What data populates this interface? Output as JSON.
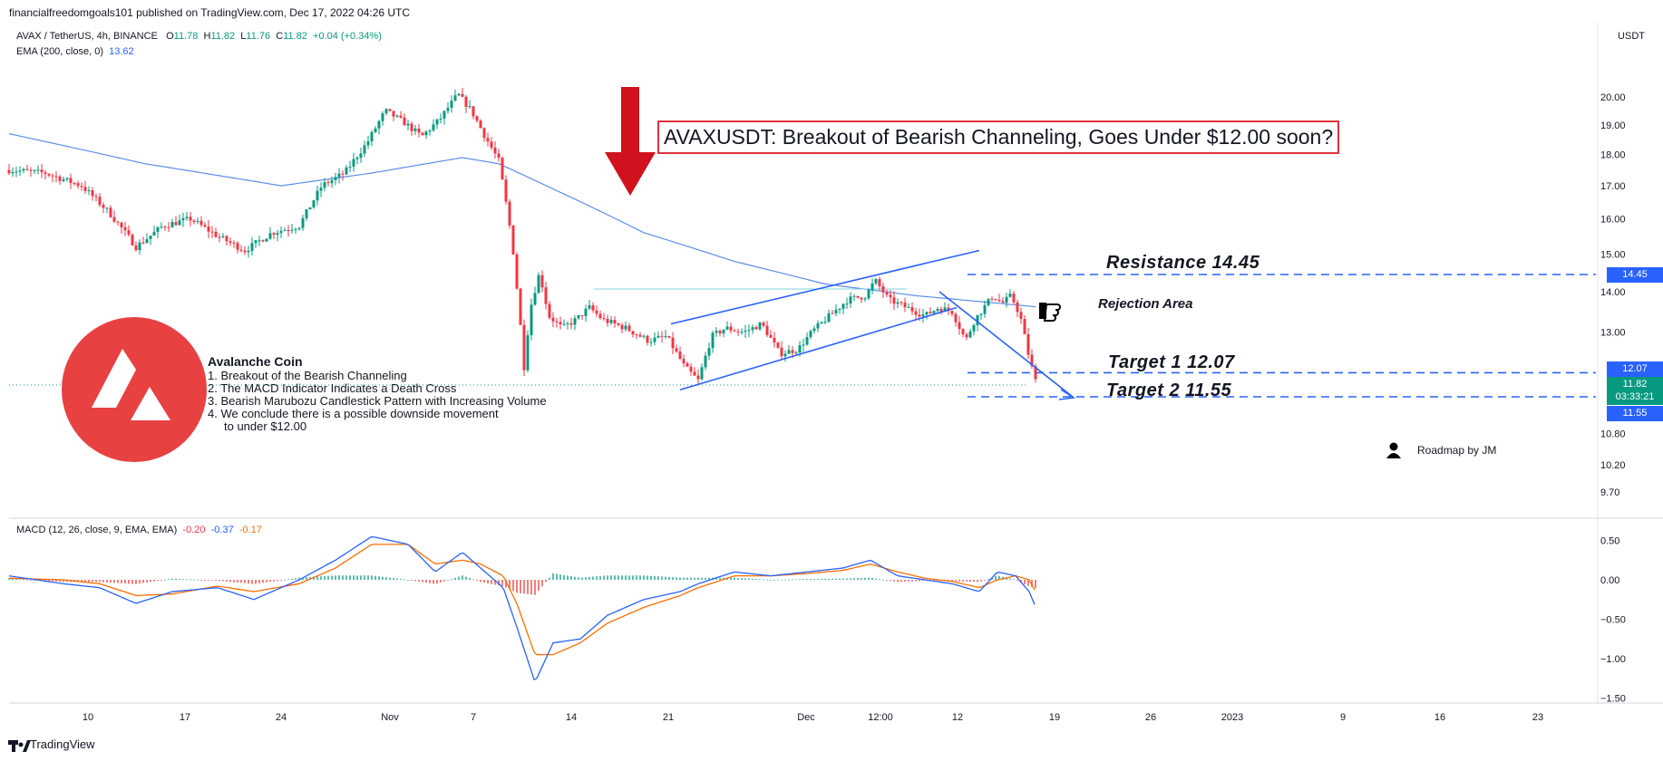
{
  "publish_line": "financialfreedomgoals101 published on TradingView.com, Dec 17, 2022 04:26 UTC",
  "legend": {
    "symbol": "AVAX / TetherUS, 4h, BINANCE",
    "open_label": "O",
    "open": "11.78",
    "high_label": "H",
    "high": "11.82",
    "low_label": "L",
    "low": "11.76",
    "close_label": "C",
    "close": "11.82",
    "change": "+0.04 (+0.34%)",
    "ema_label": "EMA (200, close, 0)",
    "ema_value": "13.62",
    "macd_label": "MACD (12, 26, close, 9, EMA, EMA)",
    "macd_hist": "-0.20",
    "macd_line": "-0.37",
    "macd_signal": "-0.17"
  },
  "headline": "AVAXUSDT: Breakout of Bearish Channeling, Goes Under $12.00 soon?",
  "annotations": {
    "resistance": "Resistance 14.45",
    "rejection": "Rejection Area",
    "target1": "Target 1  12.07",
    "target2": "Target 2  11.55",
    "roadmap": "Roadmap by JM"
  },
  "notes": {
    "title": "Avalanche Coin",
    "items": [
      "1. Breakout of the Bearish Channeling",
      "2. The MACD Indicator Indicates a Death Cross",
      "3. Bearish Marubozu Candlestick Pattern with Increasing Volume",
      "4. We conclude there is a possible downside movement",
      "    to under $12.00"
    ]
  },
  "axis": {
    "currency": "USDT",
    "price_labels": [
      "20.00",
      "19.00",
      "18.00",
      "17.00",
      "16.00",
      "15.00",
      "14.00",
      "13.00",
      "10.80",
      "10.20",
      "9.70"
    ],
    "macd_labels": [
      "0.50",
      "0.00",
      "−0.50",
      "−1.00",
      "−1.50"
    ],
    "time_labels": [
      "10",
      "17",
      "24",
      "Nov",
      "7",
      "14",
      "21",
      "Dec",
      "12:00",
      "12",
      "19",
      "26",
      "2023",
      "9",
      "16",
      "23"
    ],
    "price_tags": {
      "resistance": "14.45",
      "target1": "12.07",
      "current": "11.82",
      "countdown": "03:33:21",
      "target2": "11.55"
    }
  },
  "colors": {
    "up": "#089981",
    "down": "#f23645",
    "ema": "#5b8fe8",
    "channel": "#2962ff",
    "macd_line": "#2962ff",
    "signal_line": "#ff6d00",
    "annotation_red": "#e0313c",
    "logo_red": "#e84142"
  },
  "footer": "TradingView",
  "chart_data": {
    "type": "candlestick",
    "symbol": "AVAX / TetherUS",
    "timeframe": "4h",
    "y_axis": "log",
    "ylim": [
      9.6,
      20.8
    ],
    "price_path": [
      [
        0,
        17.5
      ],
      [
        40,
        17.4
      ],
      [
        80,
        17.0
      ],
      [
        110,
        16.2
      ],
      [
        140,
        15.2
      ],
      [
        170,
        15.8
      ],
      [
        200,
        16.0
      ],
      [
        230,
        15.5
      ],
      [
        260,
        15.1
      ],
      [
        290,
        15.6
      ],
      [
        320,
        15.8
      ],
      [
        345,
        17.0
      ],
      [
        370,
        17.4
      ],
      [
        395,
        18.4
      ],
      [
        415,
        19.5
      ],
      [
        435,
        19.1
      ],
      [
        455,
        18.6
      ],
      [
        475,
        19.2
      ],
      [
        495,
        20.1
      ],
      [
        510,
        19.5
      ],
      [
        525,
        18.6
      ],
      [
        540,
        17.8
      ],
      [
        555,
        15.3
      ],
      [
        568,
        12.2
      ],
      [
        575,
        13.6
      ],
      [
        585,
        14.5
      ],
      [
        595,
        13.4
      ],
      [
        610,
        13.1
      ],
      [
        625,
        13.3
      ],
      [
        640,
        13.6
      ],
      [
        655,
        13.3
      ],
      [
        680,
        13.1
      ],
      [
        705,
        12.8
      ],
      [
        725,
        12.9
      ],
      [
        745,
        12.2
      ],
      [
        760,
        11.9
      ],
      [
        775,
        12.9
      ],
      [
        790,
        13.1
      ],
      [
        810,
        13.0
      ],
      [
        830,
        13.2
      ],
      [
        850,
        12.5
      ],
      [
        870,
        12.6
      ],
      [
        885,
        13.0
      ],
      [
        905,
        13.4
      ],
      [
        925,
        13.8
      ],
      [
        945,
        13.9
      ],
      [
        955,
        14.3
      ],
      [
        970,
        13.8
      ],
      [
        990,
        13.6
      ],
      [
        1010,
        13.4
      ],
      [
        1025,
        13.6
      ],
      [
        1040,
        13.5
      ],
      [
        1055,
        12.8
      ],
      [
        1065,
        13.3
      ],
      [
        1075,
        13.6
      ],
      [
        1085,
        13.9
      ],
      [
        1095,
        13.7
      ],
      [
        1105,
        13.9
      ],
      [
        1115,
        13.4
      ],
      [
        1125,
        12.4
      ],
      [
        1133,
        11.82
      ]
    ],
    "ema200_path": [
      [
        0,
        18.7
      ],
      [
        150,
        17.7
      ],
      [
        300,
        17.0
      ],
      [
        400,
        17.4
      ],
      [
        500,
        17.9
      ],
      [
        540,
        17.7
      ],
      [
        600,
        16.9
      ],
      [
        700,
        15.6
      ],
      [
        800,
        14.8
      ],
      [
        900,
        14.2
      ],
      [
        1000,
        13.9
      ],
      [
        1133,
        13.62
      ]
    ],
    "channel": {
      "lower": [
        [
          740,
          11.7
        ],
        [
          1045,
          13.6
        ]
      ],
      "upper": [
        [
          730,
          13.2
        ],
        [
          1070,
          15.1
        ]
      ]
    },
    "levels": {
      "resistance": 14.45,
      "target1": 12.07,
      "target2": 11.55
    },
    "last": {
      "open": 11.78,
      "high": 11.82,
      "low": 11.76,
      "close": 11.82,
      "change": 0.04,
      "change_pct": 0.34
    },
    "ema200": 13.62,
    "macd": {
      "params": "12, 26, close, 9, EMA, EMA",
      "macd_line_last": -0.37,
      "signal_last": -0.17,
      "histogram_last": -0.2,
      "macd_path": [
        [
          0,
          0.05
        ],
        [
          60,
          -0.05
        ],
        [
          100,
          -0.1
        ],
        [
          140,
          -0.3
        ],
        [
          180,
          -0.15
        ],
        [
          230,
          -0.1
        ],
        [
          270,
          -0.25
        ],
        [
          320,
          0.0
        ],
        [
          360,
          0.25
        ],
        [
          400,
          0.55
        ],
        [
          440,
          0.45
        ],
        [
          470,
          0.1
        ],
        [
          500,
          0.35
        ],
        [
          520,
          0.15
        ],
        [
          545,
          -0.1
        ],
        [
          560,
          -0.6
        ],
        [
          580,
          -1.3
        ],
        [
          600,
          -0.8
        ],
        [
          630,
          -0.75
        ],
        [
          660,
          -0.45
        ],
        [
          700,
          -0.25
        ],
        [
          740,
          -0.15
        ],
        [
          760,
          -0.05
        ],
        [
          800,
          0.1
        ],
        [
          840,
          0.05
        ],
        [
          880,
          0.1
        ],
        [
          920,
          0.15
        ],
        [
          950,
          0.25
        ],
        [
          980,
          0.05
        ],
        [
          1010,
          0.0
        ],
        [
          1040,
          -0.05
        ],
        [
          1070,
          -0.15
        ],
        [
          1090,
          0.1
        ],
        [
          1110,
          0.05
        ],
        [
          1125,
          -0.15
        ],
        [
          1133,
          -0.37
        ]
      ],
      "signal_path": [
        [
          0,
          0.02
        ],
        [
          60,
          0.0
        ],
        [
          100,
          -0.05
        ],
        [
          140,
          -0.2
        ],
        [
          180,
          -0.18
        ],
        [
          230,
          -0.08
        ],
        [
          270,
          -0.15
        ],
        [
          320,
          -0.05
        ],
        [
          360,
          0.15
        ],
        [
          400,
          0.45
        ],
        [
          440,
          0.45
        ],
        [
          470,
          0.2
        ],
        [
          500,
          0.25
        ],
        [
          520,
          0.2
        ],
        [
          545,
          0.05
        ],
        [
          560,
          -0.3
        ],
        [
          580,
          -0.95
        ],
        [
          600,
          -0.95
        ],
        [
          630,
          -0.8
        ],
        [
          660,
          -0.55
        ],
        [
          700,
          -0.35
        ],
        [
          740,
          -0.2
        ],
        [
          760,
          -0.1
        ],
        [
          800,
          0.05
        ],
        [
          840,
          0.05
        ],
        [
          880,
          0.08
        ],
        [
          920,
          0.12
        ],
        [
          950,
          0.2
        ],
        [
          980,
          0.1
        ],
        [
          1010,
          0.02
        ],
        [
          1040,
          -0.02
        ],
        [
          1070,
          -0.1
        ],
        [
          1090,
          0.0
        ],
        [
          1110,
          0.05
        ],
        [
          1125,
          0.0
        ],
        [
          1133,
          -0.17
        ]
      ]
    }
  }
}
